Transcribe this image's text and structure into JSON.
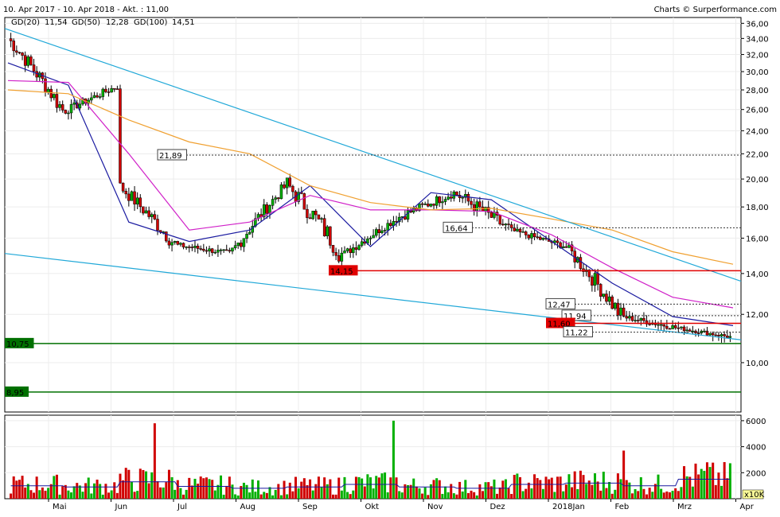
{
  "header": {
    "range_label": "10. Apr 2017 - 10. Apr 2018 - Akt. : 11,00",
    "credit": "Charts © Surperformance.com"
  },
  "legend": [
    {
      "label": "GD(20)",
      "value": "11,54",
      "color": "#1a1aa0"
    },
    {
      "label": "GD(50)",
      "value": "12,28",
      "color": "#d020c8"
    },
    {
      "label": "GD(100)",
      "value": "14,51",
      "color": "#f0a030"
    }
  ],
  "chart_data": [
    {
      "type": "candlestick",
      "title": "",
      "ylim": [
        8.3,
        36.8
      ],
      "y_scale": "log",
      "y_ticks": [
        "36,00",
        "34,00",
        "32,00",
        "30,00",
        "28,00",
        "26,00",
        "24,00",
        "22,00",
        "20,00",
        "18,00",
        "16,00",
        "14,00",
        "12,00",
        "10,00"
      ],
      "x_tick_labels": [
        "Mai",
        "Jun",
        "Jul",
        "Aug",
        "Sep",
        "Okt",
        "Nov",
        "Dez",
        "2018Jan",
        "Feb",
        "Mrz",
        "Apr"
      ],
      "up_color": "#00b000",
      "down_color": "#d00000",
      "monthly_ohlc": [
        {
          "month": "Apr",
          "o": 34.0,
          "h": 35.4,
          "l": 25.3,
          "c": 25.8
        },
        {
          "month": "Mai",
          "o": 25.8,
          "h": 29.1,
          "l": 24.7,
          "c": 28.5
        },
        {
          "month": "Jun",
          "o": 19.5,
          "h": 19.7,
          "l": 14.2,
          "c": 15.6
        },
        {
          "month": "Jul",
          "o": 15.6,
          "h": 16.4,
          "l": 14.6,
          "c": 15.1
        },
        {
          "month": "Aug",
          "o": 15.1,
          "h": 19.8,
          "l": 15.0,
          "c": 19.6
        },
        {
          "month": "Sep",
          "o": 19.6,
          "h": 22.0,
          "l": 14.5,
          "c": 15.0
        },
        {
          "month": "Okt",
          "o": 15.0,
          "h": 17.5,
          "l": 14.7,
          "c": 17.3
        },
        {
          "month": "Nov",
          "o": 17.3,
          "h": 20.6,
          "l": 17.0,
          "c": 19.0
        },
        {
          "month": "Dez",
          "o": 19.0,
          "h": 19.3,
          "l": 14.0,
          "c": 16.5
        },
        {
          "month": "2018Jan",
          "o": 16.5,
          "h": 17.1,
          "l": 15.0,
          "c": 15.5
        },
        {
          "month": "Feb",
          "o": 15.5,
          "h": 15.6,
          "l": 10.8,
          "c": 11.9
        },
        {
          "month": "Mrz",
          "o": 11.9,
          "h": 12.5,
          "l": 11.1,
          "c": 11.4
        },
        {
          "month": "Apr",
          "o": 11.4,
          "h": 11.9,
          "l": 10.9,
          "c": 11.0
        }
      ],
      "series": [
        {
          "name": "GD(20)",
          "color": "#1a1aa0",
          "monthly": [
            31.0,
            28.5,
            17.0,
            15.8,
            16.5,
            19.5,
            15.5,
            19.0,
            18.5,
            15.8,
            13.5,
            11.9,
            11.5
          ]
        },
        {
          "name": "GD(50)",
          "color": "#d020c8",
          "monthly": [
            29.0,
            28.8,
            22.0,
            16.5,
            17.0,
            18.8,
            17.8,
            17.8,
            17.7,
            16.2,
            14.3,
            12.8,
            12.3
          ]
        },
        {
          "name": "GD(100)",
          "color": "#f0a030",
          "monthly": [
            28.0,
            27.6,
            25.0,
            23.0,
            22.0,
            19.5,
            18.3,
            17.8,
            17.9,
            17.2,
            16.5,
            15.2,
            14.5
          ]
        }
      ],
      "horizontal_levels": [
        {
          "value": 21.89,
          "label": "21,89",
          "style": "dotted"
        },
        {
          "value": 16.64,
          "label": "16,64",
          "style": "dotted"
        },
        {
          "value": 14.15,
          "label": "14,15",
          "style": "solid",
          "color": "#e00000"
        },
        {
          "value": 12.47,
          "label": "12,47",
          "style": "dotted"
        },
        {
          "value": 11.94,
          "label": "11,94",
          "style": "dotted"
        },
        {
          "value": 11.6,
          "label": "11,60",
          "style": "solid",
          "color": "#e00000"
        },
        {
          "value": 11.22,
          "label": "11,22",
          "style": "dotted"
        },
        {
          "value": 10.75,
          "label": "10,75",
          "style": "solid",
          "color": "#007000"
        },
        {
          "value": 8.95,
          "label": "8,95",
          "style": "solid",
          "color": "#007000"
        }
      ],
      "trendlines": [
        {
          "from": [
            0,
            35.3
          ],
          "to": [
            1.0,
            13.6
          ],
          "color": "#20a8d8"
        },
        {
          "from": [
            0,
            15.1
          ],
          "to": [
            1.0,
            10.9
          ],
          "color": "#20a8d8"
        }
      ]
    },
    {
      "type": "bar",
      "title": "",
      "ylabel": "x10K",
      "y_ticks": [
        "6000",
        "4000",
        "2000"
      ],
      "ylim": [
        0,
        6300
      ],
      "monthly_volume_avg": [
        1000,
        900,
        1300,
        950,
        800,
        900,
        1100,
        900,
        800,
        1100,
        1200,
        1000,
        1500
      ],
      "volume_peaks": [
        5800,
        6000,
        3700,
        2800
      ],
      "avg_line_color": "#1a1aa0"
    }
  ]
}
